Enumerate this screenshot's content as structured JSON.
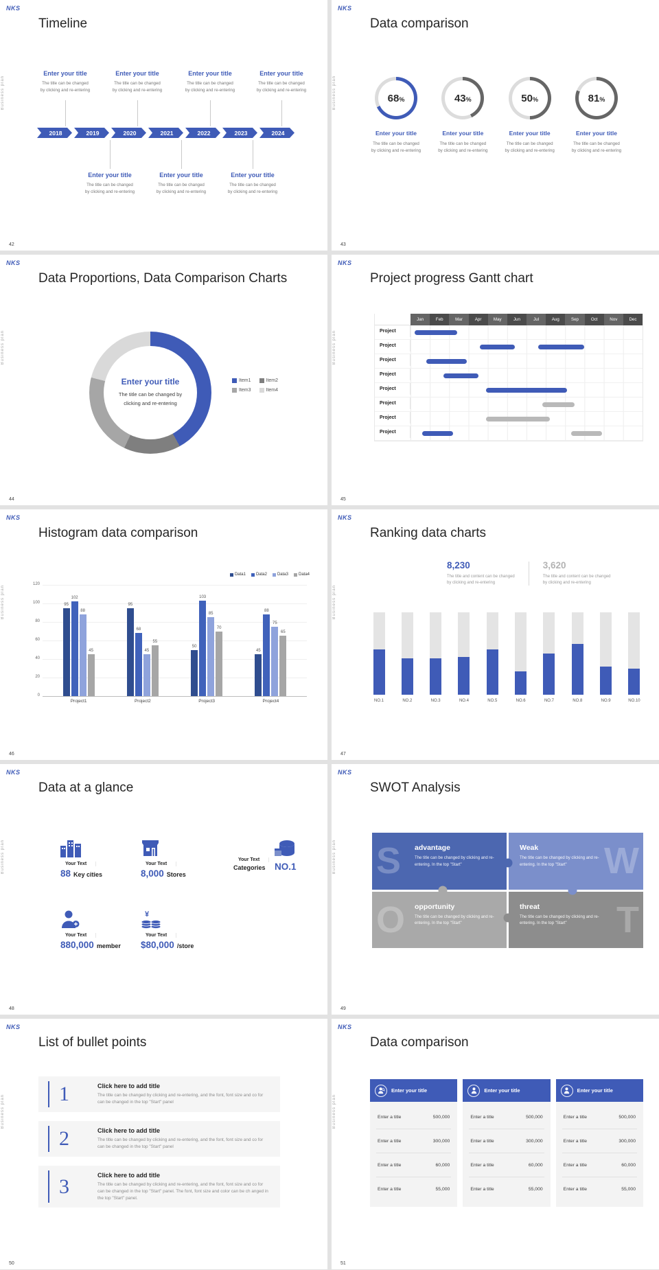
{
  "background": "#e2e2e2",
  "accent": "#3f5bb7",
  "global": {
    "logo": "NKS",
    "side_label": "Business plan"
  },
  "slides": {
    "timeline": {
      "number": "42",
      "title": "Timeline",
      "years": [
        "2018",
        "2019",
        "2020",
        "2021",
        "2022",
        "2023",
        "2024"
      ],
      "top_entries": [
        {
          "title": "Enter your title",
          "desc1": "The title can be changed",
          "desc2": "by clicking and re-entering"
        },
        {
          "title": "Enter your title",
          "desc1": "The title can be changed",
          "desc2": "by clicking and re-entering"
        },
        {
          "title": "Enter your title",
          "desc1": "The title can be changed",
          "desc2": "by clicking and re-entering"
        },
        {
          "title": "Enter your title",
          "desc1": "The title can be changed",
          "desc2": "by clicking and re-entering"
        }
      ],
      "bottom_entries": [
        {
          "title": "Enter your title",
          "desc1": "The title can be changed",
          "desc2": "by clicking and re-entering"
        },
        {
          "title": "Enter your title",
          "desc1": "The title can be changed",
          "desc2": "by clicking and re-entering"
        },
        {
          "title": "Enter your title",
          "desc1": "The title can be changed",
          "desc2": "by clicking and re-entering"
        }
      ]
    },
    "donuts": {
      "number": "43",
      "title": "Data comparison",
      "items": [
        {
          "value": "68",
          "unit": "%",
          "percent": 68,
          "color": "#3f5bb7",
          "title": "Enter your title",
          "desc1": "The title can be changed",
          "desc2": "by clicking and re-entering"
        },
        {
          "value": "43",
          "unit": "%",
          "percent": 43,
          "color": "#666666",
          "title": "Enter your title",
          "desc1": "The title can be changed",
          "desc2": "by clicking and re-entering"
        },
        {
          "value": "50",
          "unit": "%",
          "percent": 50,
          "color": "#666666",
          "title": "Enter your title",
          "desc1": "The title can be changed",
          "desc2": "by clicking and re-entering"
        },
        {
          "value": "81",
          "unit": "%",
          "percent": 81,
          "color": "#666666",
          "title": "Enter your title",
          "desc1": "The title can be changed",
          "desc2": "by clicking and re-entering"
        }
      ]
    },
    "proportions": {
      "number": "44",
      "title": "Data Proportions, Data Comparison Charts",
      "center_title": "Enter your title",
      "center_desc1": "The title can be changed by",
      "center_desc2": "clicking and re-entering",
      "segments": [
        {
          "label": "Item1",
          "value": 42,
          "color": "#3f5bb7"
        },
        {
          "label": "Item2",
          "value": 15,
          "color": "#7f7f7f"
        },
        {
          "label": "Item3",
          "value": 22,
          "color": "#a6a6a6"
        },
        {
          "label": "Item4",
          "value": 21,
          "color": "#d9d9d9"
        }
      ]
    },
    "gantt": {
      "number": "45",
      "title": "Project progress Gantt chart",
      "months": [
        "Jan",
        "Feb",
        "Mar",
        "Apr",
        "May",
        "Jun",
        "Jul",
        "Aug",
        "Sep",
        "Oct",
        "Nov",
        "Dec"
      ],
      "row_label": "Project",
      "rows": [
        {
          "bars": [
            {
              "start": 0.2,
              "end": 2.4,
              "color": "blue"
            }
          ]
        },
        {
          "bars": [
            {
              "start": 3.6,
              "end": 5.4,
              "color": "blue"
            },
            {
              "start": 6.6,
              "end": 9.0,
              "color": "blue"
            }
          ]
        },
        {
          "bars": [
            {
              "start": 0.8,
              "end": 2.9,
              "color": "blue"
            }
          ]
        },
        {
          "bars": [
            {
              "start": 1.7,
              "end": 3.5,
              "color": "blue"
            }
          ]
        },
        {
          "bars": [
            {
              "start": 3.9,
              "end": 8.1,
              "color": "blue"
            }
          ]
        },
        {
          "bars": [
            {
              "start": 6.8,
              "end": 8.5,
              "color": "gray"
            }
          ]
        },
        {
          "bars": [
            {
              "start": 3.9,
              "end": 7.2,
              "color": "gray"
            }
          ]
        },
        {
          "bars": [
            {
              "start": 0.6,
              "end": 2.2,
              "color": "blue"
            },
            {
              "start": 8.3,
              "end": 9.9,
              "color": "gray"
            }
          ]
        }
      ]
    },
    "histogram": {
      "number": "46",
      "title": "Histogram data comparison",
      "legend": [
        {
          "name": "Data1",
          "color": "#2f4d8f"
        },
        {
          "name": "Data2",
          "color": "#4062bb"
        },
        {
          "name": "Data3",
          "color": "#8fa3dc"
        },
        {
          "name": "Data4",
          "color": "#a6a6a6"
        }
      ],
      "y_ticks": [
        120,
        100,
        80,
        60,
        40,
        20,
        0
      ],
      "y_max": 120,
      "groups": [
        {
          "label": "Project1",
          "values": [
            95,
            102,
            88,
            45
          ]
        },
        {
          "label": "Project2",
          "values": [
            95,
            68,
            45,
            55
          ]
        },
        {
          "label": "Project3",
          "values": [
            50,
            103,
            85,
            70
          ]
        },
        {
          "label": "Project4",
          "values": [
            45,
            88,
            75,
            65
          ]
        }
      ]
    },
    "ranking": {
      "number": "47",
      "title": "Ranking data charts",
      "stats": [
        {
          "value": "8,230",
          "color": "#3f5bb7",
          "desc1": "The title and content can be changed",
          "desc2": "by clicking and re-entering"
        },
        {
          "value": "3,620",
          "color": "#b3b3b3",
          "desc1": "The title and content can be changed",
          "desc2": "by clicking and re-entering"
        }
      ],
      "bars": [
        {
          "label": "NO.1",
          "fill": 55
        },
        {
          "label": "NO.2",
          "fill": 44
        },
        {
          "label": "NO.3",
          "fill": 44
        },
        {
          "label": "NO.4",
          "fill": 46
        },
        {
          "label": "NO.5",
          "fill": 55
        },
        {
          "label": "NO.6",
          "fill": 28
        },
        {
          "label": "NO.7",
          "fill": 50
        },
        {
          "label": "NO.8",
          "fill": 62
        },
        {
          "label": "NO.9",
          "fill": 34
        },
        {
          "label": "NO.10",
          "fill": 32
        }
      ]
    },
    "glance": {
      "number": "48",
      "title": "Data at a glance",
      "items": [
        {
          "icon": "buildings",
          "label": "Your Text",
          "big": "88",
          "small": "Key cities"
        },
        {
          "icon": "store",
          "label": "Your Text",
          "big": "8,000",
          "small": "Stores"
        },
        {
          "icon": "database",
          "label": "Your Text",
          "big": "NO.1",
          "small": "Categories"
        },
        {
          "icon": "member",
          "label": "Your Text",
          "big": "880,000",
          "small": "member"
        },
        {
          "icon": "coins",
          "label": "Your Text",
          "big": "$80,000",
          "small": "/store"
        }
      ]
    },
    "swot": {
      "number": "49",
      "title": "SWOT Analysis",
      "pieces": [
        {
          "letter": "S",
          "title": "advantage",
          "desc": "The title can be changed by clicking and re-entering. In the top \"Start\"",
          "color": "#4c67b0"
        },
        {
          "letter": "W",
          "title": "Weak",
          "desc": "The title can be changed by clicking and re-entering. In the top \"Start\"",
          "color": "#7b8fcb"
        },
        {
          "letter": "O",
          "title": "opportunity",
          "desc": "The title can be changed by clicking and re-entering. In the top \"Start\"",
          "color": "#a9a9a9"
        },
        {
          "letter": "T",
          "title": "threat",
          "desc": "The title can be changed by clicking and re-entering. In the top \"Start\"",
          "color": "#8d8d8d"
        }
      ]
    },
    "bullets": {
      "number": "50",
      "title": "List of bullet points",
      "items": [
        {
          "num": "1",
          "title": "Click here to add title",
          "desc": "The title can be changed by clicking and re-entering, and the font, font size and co for can be changed in the top \"Start\" panel"
        },
        {
          "num": "2",
          "title": "Click here to add title",
          "desc": "The title can be changed by clicking and re-entering, and the font, font size and co for can be changed in the top \"Start\" panel"
        },
        {
          "num": "3",
          "title": "Click here to add title",
          "desc": "The title can be changed by clicking and re-entering, and the font, font size and co for can be changed in the top \"Start\" panel. The font, font size and color can be ch anged in the top \"Start\" panel."
        }
      ]
    },
    "compare": {
      "number": "51",
      "title": "Data comparison",
      "cards": [
        {
          "icon": "user-search-white",
          "header": "Enter your title",
          "rows": [
            [
              "Enter a title",
              "500,000"
            ],
            [
              "Enter a title",
              "300,000"
            ],
            [
              "Enter a title",
              "60,000"
            ],
            [
              "Enter a title",
              "55,000"
            ]
          ]
        },
        {
          "icon": "user-white",
          "header": "Enter your title",
          "rows": [
            [
              "Enter a title",
              "500,000"
            ],
            [
              "Enter a title",
              "300,000"
            ],
            [
              "Enter a title",
              "60,000"
            ],
            [
              "Enter a title",
              "55,000"
            ]
          ]
        },
        {
          "icon": "user-white",
          "header": "Enter your title",
          "rows": [
            [
              "Enter a title",
              "500,000"
            ],
            [
              "Enter a title",
              "300,000"
            ],
            [
              "Enter a title",
              "60,000"
            ],
            [
              "Enter a title",
              "55,000"
            ]
          ]
        }
      ]
    }
  },
  "chart_data": [
    {
      "type": "pie",
      "subtype": "donut-gauges",
      "title": "Data comparison",
      "values": [
        68,
        43,
        50,
        81
      ],
      "unit": "%",
      "labels": [
        "Enter your title",
        "Enter your title",
        "Enter your title",
        "Enter your title"
      ]
    },
    {
      "type": "pie",
      "subtype": "donut",
      "title": "Data Proportions, Data Comparison Charts",
      "labels": [
        "Item1",
        "Item2",
        "Item3",
        "Item4"
      ],
      "values": [
        42,
        15,
        22,
        21
      ],
      "legend_position": "right"
    },
    {
      "type": "table",
      "subtype": "gantt",
      "title": "Project progress Gantt chart",
      "x": [
        "Jan",
        "Feb",
        "Mar",
        "Apr",
        "May",
        "Jun",
        "Jul",
        "Aug",
        "Sep",
        "Oct",
        "Nov",
        "Dec"
      ],
      "rows": [
        "Project",
        "Project",
        "Project",
        "Project",
        "Project",
        "Project",
        "Project",
        "Project"
      ],
      "bars": [
        [
          0,
          0.2,
          2.4,
          "blue"
        ],
        [
          1,
          3.6,
          5.4,
          "blue"
        ],
        [
          1,
          6.6,
          9.0,
          "blue"
        ],
        [
          2,
          0.8,
          2.9,
          "blue"
        ],
        [
          3,
          1.7,
          3.5,
          "blue"
        ],
        [
          4,
          3.9,
          8.1,
          "blue"
        ],
        [
          5,
          6.8,
          8.5,
          "gray"
        ],
        [
          6,
          3.9,
          7.2,
          "gray"
        ],
        [
          7,
          0.6,
          2.2,
          "blue"
        ],
        [
          7,
          8.3,
          9.9,
          "gray"
        ]
      ]
    },
    {
      "type": "bar",
      "title": "Histogram data comparison",
      "categories": [
        "Project1",
        "Project2",
        "Project3",
        "Project4"
      ],
      "series": [
        {
          "name": "Data1",
          "values": [
            95,
            95,
            50,
            45
          ]
        },
        {
          "name": "Data2",
          "values": [
            102,
            68,
            103,
            88
          ]
        },
        {
          "name": "Data3",
          "values": [
            88,
            45,
            85,
            75
          ]
        },
        {
          "name": "Data4",
          "values": [
            45,
            55,
            70,
            65
          ]
        }
      ],
      "ylim": [
        0,
        120
      ],
      "legend_position": "top-right",
      "grid": true
    },
    {
      "type": "bar",
      "title": "Ranking data charts",
      "categories": [
        "NO.1",
        "NO.2",
        "NO.3",
        "NO.4",
        "NO.5",
        "NO.6",
        "NO.7",
        "NO.8",
        "NO.9",
        "NO.10"
      ],
      "values": [
        55,
        44,
        44,
        46,
        55,
        28,
        50,
        62,
        34,
        32
      ],
      "note": "blue fill percent of full gray track",
      "annotations": [
        "8,230",
        "3,620"
      ]
    }
  ]
}
